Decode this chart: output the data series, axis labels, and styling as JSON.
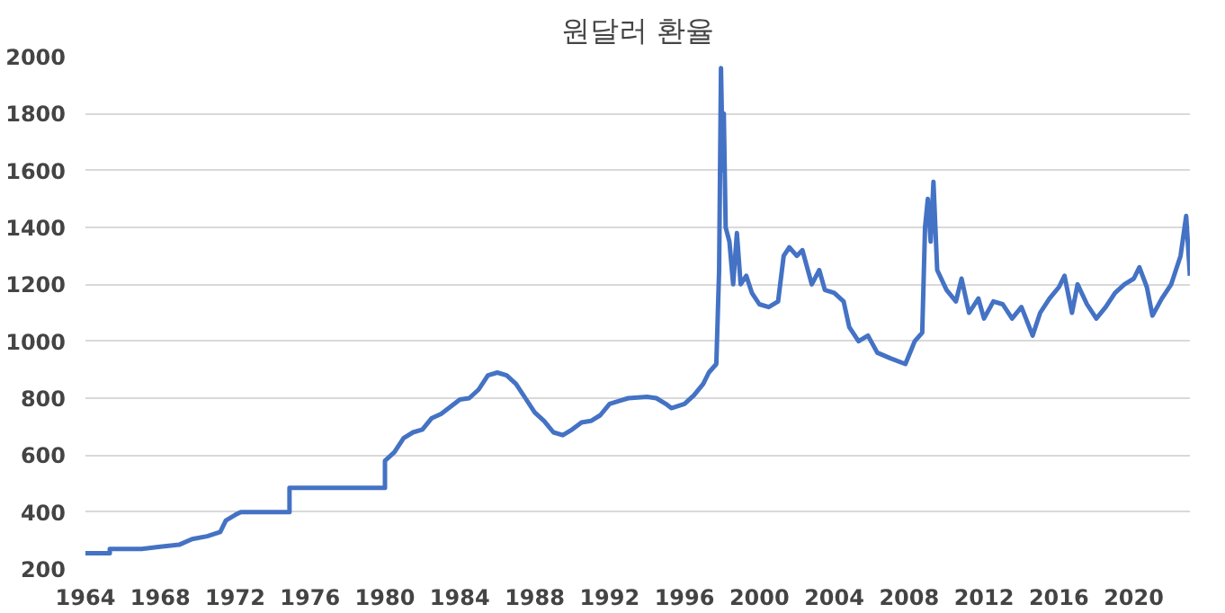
{
  "chart_data": {
    "type": "line",
    "title": "원달러 환율",
    "x": [
      1964,
      1965.3,
      1965.3,
      1967,
      1968,
      1969,
      1969.7,
      1970.5,
      1971.2,
      1971.5,
      1972,
      1972.3,
      1974.9,
      1974.9,
      1980.0,
      1980.0,
      1980.5,
      1981,
      1981.5,
      1982,
      1982.5,
      1983,
      1983.5,
      1984,
      1984.5,
      1985,
      1985.5,
      1986,
      1986.5,
      1987,
      1987.5,
      1988,
      1988.5,
      1989,
      1989.5,
      1990,
      1990.5,
      1991,
      1991.5,
      1992,
      1992.5,
      1993,
      1994,
      1994.5,
      1995,
      1995.3,
      1996,
      1996.5,
      1997,
      1997.3,
      1997.7,
      1997.85,
      1997.95,
      1998.05,
      1998.1,
      1998.2,
      1998.4,
      1998.6,
      1998.8,
      1999,
      1999.3,
      1999.6,
      2000,
      2000.5,
      2001,
      2001.3,
      2001.6,
      2002,
      2002.3,
      2002.8,
      2003.2,
      2003.5,
      2004,
      2004.5,
      2004.8,
      2005.3,
      2005.8,
      2006.3,
      2007,
      2007.8,
      2008.3,
      2008.7,
      2008.85,
      2009.0,
      2009.15,
      2009.3,
      2009.5,
      2010,
      2010.5,
      2010.8,
      2011.2,
      2011.7,
      2012,
      2012.5,
      2013,
      2013.5,
      2014,
      2014.6,
      2015,
      2015.5,
      2016,
      2016.3,
      2016.7,
      2017,
      2017.5,
      2018,
      2018.5,
      2019,
      2019.5,
      2020,
      2020.3,
      2020.7,
      2021,
      2021.5,
      2022,
      2022.5,
      2022.8,
      2023
    ],
    "series": [
      {
        "color": "#4472c4",
        "values": [
          255,
          255,
          270,
          270,
          278,
          285,
          305,
          315,
          330,
          370,
          390,
          400,
          400,
          485,
          485,
          580,
          610,
          660,
          680,
          690,
          730,
          745,
          770,
          795,
          800,
          830,
          880,
          890,
          880,
          850,
          800,
          750,
          720,
          680,
          670,
          690,
          715,
          720,
          740,
          780,
          790,
          800,
          805,
          800,
          780,
          765,
          780,
          810,
          850,
          890,
          920,
          1250,
          1960,
          1600,
          1800,
          1400,
          1350,
          1200,
          1380,
          1200,
          1230,
          1170,
          1130,
          1120,
          1140,
          1300,
          1330,
          1300,
          1320,
          1200,
          1250,
          1180,
          1170,
          1140,
          1050,
          1000,
          1020,
          960,
          940,
          920,
          1000,
          1030,
          1400,
          1500,
          1350,
          1560,
          1250,
          1180,
          1140,
          1220,
          1100,
          1150,
          1080,
          1140,
          1130,
          1080,
          1120,
          1020,
          1100,
          1150,
          1190,
          1230,
          1100,
          1200,
          1130,
          1080,
          1120,
          1170,
          1200,
          1220,
          1260,
          1190,
          1090,
          1150,
          1200,
          1300,
          1440,
          1230
        ]
      }
    ],
    "xlim": [
      1964,
      2023
    ],
    "xticks": [
      1964,
      1968,
      1972,
      1976,
      1980,
      1984,
      1988,
      1992,
      1996,
      2000,
      2004,
      2008,
      2012,
      2016,
      2020
    ],
    "ylim": [
      200,
      2000
    ],
    "yticks": [
      200,
      400,
      600,
      800,
      1000,
      1200,
      1400,
      1600,
      1800,
      2000
    ],
    "grid": "y",
    "line_style": "solid"
  }
}
